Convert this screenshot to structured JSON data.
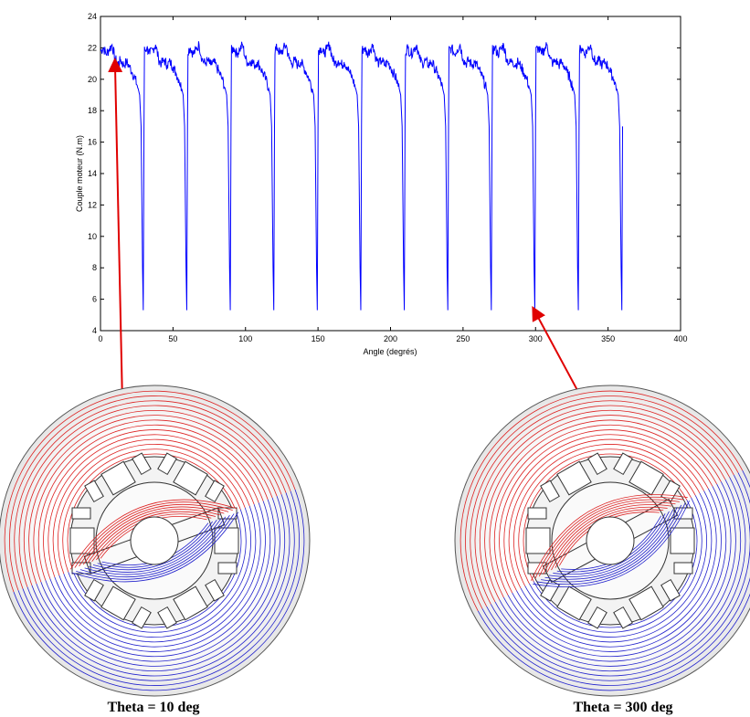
{
  "chart_data": {
    "type": "line",
    "xlabel": "Angle (degrés)",
    "ylabel": "Couple moteur (N.m)",
    "xlim": [
      0,
      400
    ],
    "ylim": [
      4,
      24
    ],
    "xticks": [
      0,
      50,
      100,
      150,
      200,
      250,
      300,
      350,
      400
    ],
    "yticks": [
      4,
      6,
      8,
      10,
      12,
      14,
      16,
      18,
      20,
      22,
      24
    ],
    "grid": false,
    "line_color": "#0000ff",
    "period_deg": 30,
    "periods": 12,
    "peak_range": [
      22.0,
      22.5
    ],
    "plateau_range": [
      20.5,
      21.5
    ],
    "min_value": 5.3,
    "series": [
      {
        "x": [
          0,
          2,
          4,
          6,
          8,
          10,
          12,
          14,
          16,
          18,
          20,
          22,
          24,
          26,
          27,
          28,
          29,
          29.5,
          30
        ],
        "y": [
          21.8,
          22.0,
          21.6,
          21.9,
          22.2,
          21.3,
          21.0,
          21.2,
          20.9,
          21.1,
          20.8,
          20.4,
          20.0,
          19.4,
          19.0,
          17.0,
          8.0,
          5.3,
          17.0
        ]
      }
    ]
  },
  "annotations": {
    "arrow_color": "#e00000",
    "points": [
      {
        "x": 10,
        "y": 21.5
      },
      {
        "x": 300,
        "y": 5.6
      }
    ]
  },
  "motor_views": {
    "field_colors": {
      "red": "#dd2222",
      "blue": "#2222cc"
    },
    "left": {
      "caption": "Theta = 10 deg",
      "theta_deg": 10
    },
    "right": {
      "caption": "Theta = 300 deg",
      "theta_deg": 300
    }
  }
}
